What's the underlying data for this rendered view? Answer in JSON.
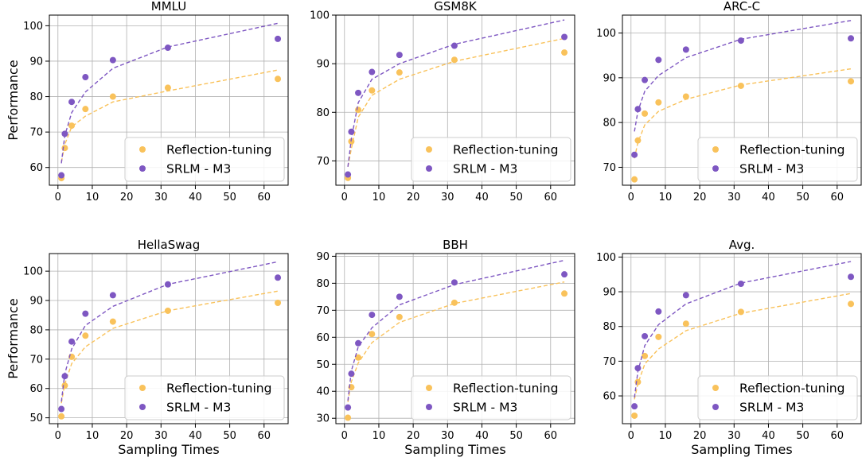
{
  "colors": {
    "reflection": "#F9C25B",
    "srlm": "#7E57C2",
    "grid": "#b0b0b0",
    "axis": "#000000"
  },
  "common": {
    "xlabel": "Sampling Times",
    "ylabel": "Performance",
    "x_ticks": [
      0,
      10,
      20,
      30,
      40,
      50,
      60
    ],
    "xlim": [
      -2.5,
      67
    ],
    "legend_position": "lower right",
    "grid": true
  },
  "chart_data": [
    {
      "type": "scatter",
      "title": "MMLU",
      "xlim": [
        -2.5,
        67
      ],
      "ylim": [
        55,
        103
      ],
      "y_ticks": [
        60,
        70,
        80,
        90,
        100
      ],
      "x": [
        1,
        2,
        4,
        8,
        16,
        32,
        64
      ],
      "series": [
        {
          "name": "Reflection-tuning",
          "values": [
            57,
            65.5,
            71.8,
            76.5,
            80,
            82.5,
            85
          ],
          "trend": [
            61.5,
            66.5,
            71.5,
            74.5,
            78.5,
            81.6,
            87.5
          ]
        },
        {
          "name": "SRLM - M3",
          "values": [
            57.8,
            69.5,
            78.5,
            85.5,
            90.3,
            93.8,
            96.3
          ],
          "trend": [
            61.2,
            69,
            75.5,
            81.3,
            88,
            94,
            100.7
          ]
        }
      ]
    },
    {
      "type": "scatter",
      "title": "GSM8K",
      "xlim": [
        -2.5,
        67
      ],
      "ylim": [
        65,
        100
      ],
      "y_ticks": [
        70,
        80,
        90,
        100
      ],
      "x": [
        1,
        2,
        4,
        8,
        16,
        32,
        64
      ],
      "series": [
        {
          "name": "Reflection-tuning",
          "values": [
            66.5,
            74,
            80.5,
            84.5,
            88.2,
            90.8,
            92.3
          ],
          "trend": [
            68.8,
            72.5,
            79,
            83.5,
            86.8,
            90.5,
            95.2
          ]
        },
        {
          "name": "SRLM - M3",
          "values": [
            67.2,
            76,
            84,
            88.3,
            91.8,
            93.7,
            95.5
          ],
          "trend": [
            68.8,
            74.5,
            82,
            86.8,
            90,
            94,
            99
          ]
        }
      ]
    },
    {
      "type": "scatter",
      "title": "ARC-C",
      "xlim": [
        -2.5,
        67
      ],
      "ylim": [
        66,
        104
      ],
      "y_ticks": [
        70,
        80,
        90,
        100
      ],
      "x": [
        1,
        2,
        4,
        8,
        16,
        32,
        64
      ],
      "series": [
        {
          "name": "Reflection-tuning",
          "values": [
            67.3,
            76,
            82,
            84.5,
            85.8,
            88.2,
            89.2
          ],
          "trend": [
            72,
            75.5,
            79.5,
            82.5,
            85.2,
            88.4,
            92
          ]
        },
        {
          "name": "SRLM - M3",
          "values": [
            72.8,
            83,
            89.5,
            94,
            96.3,
            98.3,
            98.8
          ],
          "trend": [
            78,
            82.5,
            87,
            90.5,
            94.5,
            98.6,
            102.8
          ]
        }
      ]
    },
    {
      "type": "scatter",
      "title": "HellaSwag",
      "xlim": [
        -2.5,
        67
      ],
      "ylim": [
        48,
        106
      ],
      "y_ticks": [
        50,
        60,
        70,
        80,
        90,
        100
      ],
      "x": [
        1,
        2,
        4,
        8,
        16,
        32,
        64
      ],
      "series": [
        {
          "name": "Reflection-tuning",
          "values": [
            50.5,
            61,
            70.8,
            78,
            82.8,
            86.5,
            89.2
          ],
          "trend": [
            55,
            61.5,
            68.5,
            74.2,
            80.5,
            86.5,
            93.2
          ]
        },
        {
          "name": "SRLM - M3",
          "values": [
            53,
            64.2,
            76,
            85.5,
            91.8,
            95.5,
            97.8
          ],
          "trend": [
            55.5,
            65,
            73.5,
            81.5,
            88,
            95.5,
            103.2
          ]
        }
      ]
    },
    {
      "type": "scatter",
      "title": "BBH",
      "xlim": [
        -2.5,
        67
      ],
      "ylim": [
        28,
        91
      ],
      "y_ticks": [
        30,
        40,
        50,
        60,
        70,
        80,
        90
      ],
      "x": [
        1,
        2,
        4,
        8,
        16,
        32,
        64
      ],
      "series": [
        {
          "name": "Reflection-tuning",
          "values": [
            30.2,
            41.5,
            52.5,
            61.2,
            67.5,
            72.8,
            76.2
          ],
          "trend": [
            36,
            43.5,
            50.5,
            58,
            65.5,
            72.5,
            80.5
          ]
        },
        {
          "name": "SRLM - M3",
          "values": [
            34,
            46.5,
            57.8,
            68.3,
            75,
            80.3,
            83.3
          ],
          "trend": [
            36.5,
            47.5,
            56.5,
            63.5,
            72,
            79.5,
            88.5
          ]
        }
      ]
    },
    {
      "type": "scatter",
      "title": "Avg.",
      "xlim": [
        -2.5,
        67
      ],
      "ylim": [
        52,
        101
      ],
      "y_ticks": [
        60,
        70,
        80,
        90,
        100
      ],
      "x": [
        1,
        2,
        4,
        8,
        16,
        32,
        64
      ],
      "series": [
        {
          "name": "Reflection-tuning",
          "values": [
            54.3,
            64,
            71.5,
            77,
            80.8,
            84.2,
            86.5
          ],
          "trend": [
            59,
            63.5,
            69.2,
            73.5,
            78.8,
            83.8,
            89.5
          ]
        },
        {
          "name": "SRLM - M3",
          "values": [
            57,
            68,
            77.2,
            84.3,
            89,
            92.3,
            94.3
          ],
          "trend": [
            59.5,
            67,
            74.5,
            80.5,
            86.5,
            92.5,
            98.7
          ]
        }
      ]
    }
  ]
}
